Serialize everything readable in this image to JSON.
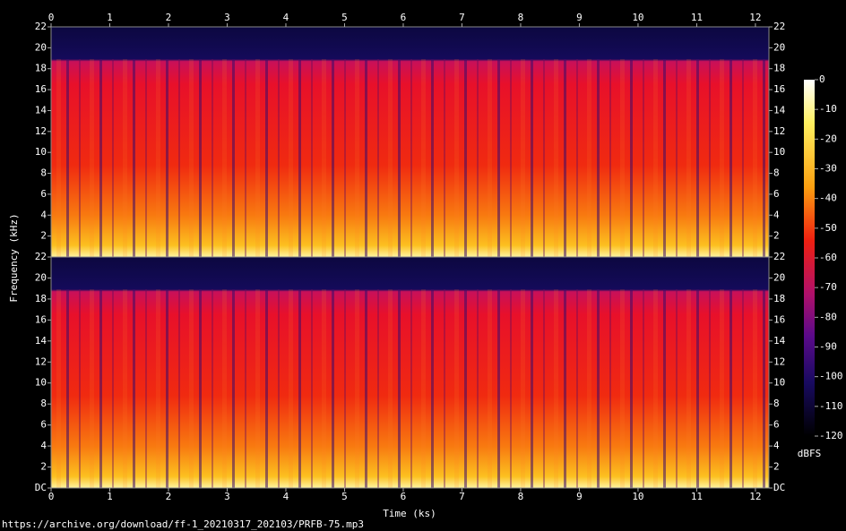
{
  "chart_data": {
    "type": "spectrogram",
    "x_label": "Time (ks)",
    "y_label": "Frequency (kHz)",
    "xlim": [
      0,
      12.23
    ],
    "xticks": [
      0,
      1,
      2,
      3,
      4,
      5,
      6,
      7,
      8,
      9,
      10,
      11,
      12
    ],
    "channels": [
      {
        "ylim": [
          0,
          22
        ],
        "yticks": [
          2,
          4,
          6,
          8,
          10,
          12,
          14,
          16,
          18,
          20,
          22
        ]
      },
      {
        "ylim": [
          0,
          22
        ],
        "yticks": [
          {
            "value": 0,
            "label": "DC"
          },
          2,
          4,
          6,
          8,
          10,
          12,
          14,
          16,
          18,
          20,
          22
        ]
      }
    ],
    "colorbar": {
      "label": "dBFS",
      "lim": [
        -120,
        0
      ],
      "ticks": [
        0,
        -10,
        -20,
        -30,
        -40,
        -50,
        -60,
        -70,
        -80,
        -90,
        -100,
        -110,
        -120
      ]
    }
  },
  "footer": "https://archive.org/download/ff-1_20210317_202103/PRFB-75.mp3"
}
